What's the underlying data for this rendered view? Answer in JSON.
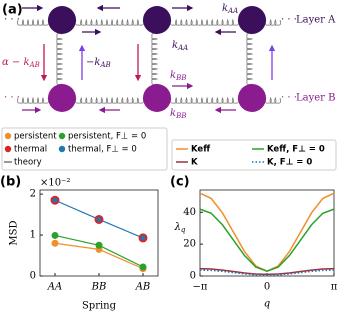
{
  "figure": {
    "panel_a": {
      "label": "(a)",
      "layer_a": "Layer A",
      "layer_b": "Layer B",
      "k_aa_top": {
        "base": "k",
        "sub": "AA"
      },
      "k_aa_mid": {
        "base": "k",
        "sub": "AA"
      },
      "alpha_k_ab": {
        "base": "α − k",
        "sub": "AB"
      },
      "minus_k_ab": {
        "base": "−k",
        "sub": "AB"
      },
      "k_bb_mid": {
        "base": "k",
        "sub": "BB"
      },
      "k_bb_bottom": {
        "base": "k",
        "sub": "BB"
      }
    }
  },
  "chart_data": [
    {
      "type": "line",
      "panel_label": "(b)",
      "x_label": "Spring",
      "y_label": "MSD",
      "y_multiplier": "×10⁻²",
      "categories": [
        "AA",
        "BB",
        "AB"
      ],
      "ylim": [
        0,
        2.1
      ],
      "yticks": [
        0,
        1,
        2
      ],
      "series": [
        {
          "name": "persistent",
          "color": "#f28e2b",
          "values": [
            0.8,
            0.65,
            0.18
          ],
          "line": true,
          "marker_size": 3.5
        },
        {
          "name": "thermal",
          "color": "#d62728",
          "values": [
            1.85,
            1.38,
            0.93
          ],
          "line": false,
          "marker_size": 4.5
        },
        {
          "name": "persistent, F⊥ = 0",
          "color": "#2ca02c",
          "values": [
            0.99,
            0.75,
            0.22
          ],
          "line": true,
          "marker_size": 3.5
        },
        {
          "name": "thermal, F⊥ = 0",
          "color": "#1f77b4",
          "values": [
            1.85,
            1.38,
            0.93
          ],
          "line": true,
          "marker_size": 2.5
        }
      ],
      "theory": {
        "name": "theory",
        "color": "#555555"
      }
    },
    {
      "type": "line",
      "panel_label": "(c)",
      "x_label": "q",
      "y_label": {
        "base": "λ",
        "sub": "q"
      },
      "x": [
        -3.1416,
        -2.618,
        -2.0944,
        -1.5708,
        -1.0472,
        -0.5236,
        0,
        0.5236,
        1.0472,
        1.5708,
        2.0944,
        2.618,
        3.1416
      ],
      "xlim": [
        -3.1416,
        3.1416
      ],
      "xticks": [
        {
          "value": -3.1416,
          "label": "−π"
        },
        0,
        {
          "value": 3.1416,
          "label": "π"
        }
      ],
      "ylim": [
        0,
        54
      ],
      "yticks": [
        0,
        20,
        40
      ],
      "series": [
        {
          "name": "Keff",
          "color": "#f28e2b",
          "values": [
            52,
            48.72,
            39.75,
            27.5,
            15.25,
            6.28,
            3,
            6.28,
            15.25,
            27.5,
            39.75,
            48.72,
            52
          ]
        },
        {
          "name": "K",
          "color": "#a0303a",
          "values": [
            4.6,
            4.36,
            3.7,
            2.8,
            1.9,
            1.24,
            1,
            1.24,
            1.9,
            2.8,
            3.7,
            4.36,
            4.6
          ]
        },
        {
          "name": "Keff, F⊥ = 0",
          "color": "#2ca02c",
          "values": [
            42,
            39.39,
            32.25,
            22.5,
            12.75,
            5.61,
            3,
            5.61,
            12.75,
            22.5,
            32.25,
            39.39,
            42
          ]
        },
        {
          "name": "K, F⊥ = 0",
          "color": "#1f77b4",
          "dash": "dotted",
          "values": [
            3.7,
            3.49,
            2.9,
            2.1,
            1.3,
            0.71,
            0.5,
            0.71,
            1.3,
            2.1,
            2.9,
            3.49,
            3.7
          ]
        }
      ]
    }
  ]
}
